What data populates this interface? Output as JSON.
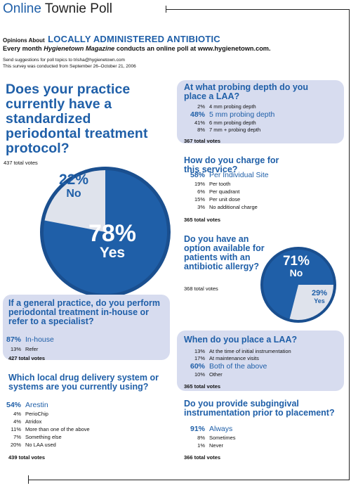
{
  "header": {
    "title_part1": "Online",
    "title_part2": "Townie Poll",
    "subtitle_prefix": "Opinions About",
    "subtitle_topic": "LOCALLY ADMINISTERED ANTIBIOTIC",
    "tagline_part1": "Every month",
    "tagline_magazine": "Hygienetown Magazine",
    "tagline_part2": "conducts an online poll at www.hygienetown.com.",
    "note1": "Send suggestions for poll topics to trisha@hygienetown.com",
    "note2": "This survey was conducted from September 26–October 21, 2006"
  },
  "q1": {
    "question": "Does your practice currently have a standardized periodontal treatment protocol?",
    "total": "437 total votes",
    "no_pct": "22%",
    "no_label": "No",
    "yes_pct": "78%",
    "yes_label": "Yes"
  },
  "q2": {
    "question": "At what probing depth do you place a LAA?",
    "rows": [
      {
        "pct": "2%",
        "label": "4 mm probing depth"
      },
      {
        "pct": "48%",
        "label": "5 mm probing depth"
      },
      {
        "pct": "41%",
        "label": "6 mm probing depth"
      },
      {
        "pct": "8%",
        "label": "7 mm + probing depth"
      }
    ],
    "total": "367 total votes"
  },
  "q3": {
    "question": "How do you charge for this service?",
    "rows": [
      {
        "pct": "58%",
        "label": "Per Individual Site"
      },
      {
        "pct": "19%",
        "label": "Per tooth"
      },
      {
        "pct": "6%",
        "label": "Per quadrant"
      },
      {
        "pct": "15%",
        "label": "Per unit dose"
      },
      {
        "pct": "3%",
        "label": "No additional charge"
      }
    ],
    "total": "365 total votes"
  },
  "q4": {
    "question": "Do you have an option available for patients with an antibiotic allergy?",
    "total": "368 total votes",
    "no_pct": "71%",
    "no_label": "No",
    "yes_pct": "29%",
    "yes_label": "Yes"
  },
  "q5": {
    "question": "If a general practice, do you perform periodontal treatment in-house or refer to a specialist?",
    "rows": [
      {
        "pct": "87%",
        "label": "In-house"
      },
      {
        "pct": "13%",
        "label": "Refer"
      }
    ],
    "total": "427 total votes"
  },
  "q6": {
    "question": "When do you place a LAA?",
    "rows": [
      {
        "pct": "13%",
        "label": "At the time of initial instrumentation"
      },
      {
        "pct": "17%",
        "label": "At maintenance visits"
      },
      {
        "pct": "60%",
        "label": "Both of the above"
      },
      {
        "pct": "10%",
        "label": "Other"
      }
    ],
    "total": "365 total votes"
  },
  "q7": {
    "question": "Which local drug delivery system or systems are you currently using?",
    "rows": [
      {
        "pct": "54%",
        "label": "Arestin"
      },
      {
        "pct": "4%",
        "label": "PerioChip"
      },
      {
        "pct": "4%",
        "label": "Atridox"
      },
      {
        "pct": "11%",
        "label": "More than one of the above"
      },
      {
        "pct": "7%",
        "label": "Something else"
      },
      {
        "pct": "20%",
        "label": "No LAA used"
      }
    ],
    "total": "439 total votes"
  },
  "q8": {
    "question": "Do you provide subgingival instrumentation prior to placement?",
    "rows": [
      {
        "pct": "91%",
        "label": "Always"
      },
      {
        "pct": "8%",
        "label": "Sometimes"
      },
      {
        "pct": "1%",
        "label": "Never"
      }
    ],
    "total": "366 total votes"
  },
  "colors": {
    "accent": "#1f5fa8",
    "panel": "#d7dcef",
    "pie_light": "#dfe3ec"
  }
}
